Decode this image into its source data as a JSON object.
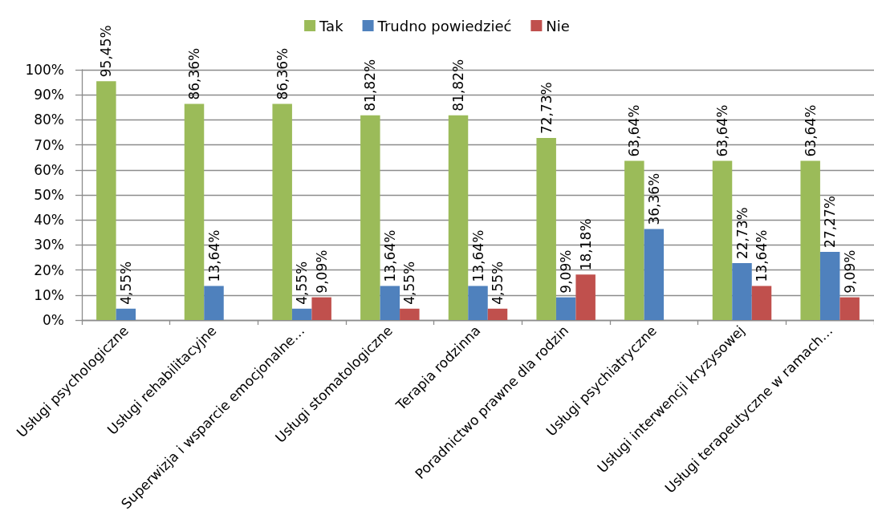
{
  "chart_data": {
    "type": "bar",
    "categories": [
      "Usługi psychologiczne",
      "Usługi rehabilitacyjne",
      "Superwizja i wsparcie emocjonalne…",
      "Usługi stomatologiczne",
      "Terapia rodzinna",
      "Poradnictwo prawne dla rodzin",
      "Usługi psychiatryczne",
      "Usługi interwencji kryzysowej",
      "Usługi terapeutyczne w ramach…"
    ],
    "series": [
      {
        "name": "Tak",
        "color": "#9bbb59",
        "values": [
          95.45,
          86.36,
          86.36,
          81.82,
          81.82,
          72.73,
          63.64,
          63.64,
          63.64
        ],
        "value_labels": [
          "95,45%",
          "86,36%",
          "86,36%",
          "81,82%",
          "81,82%",
          "72,73%",
          "63,64%",
          "63,64%",
          "63,64%"
        ]
      },
      {
        "name": "Trudno powiedzieć",
        "color": "#4f81bd",
        "values": [
          4.55,
          13.64,
          4.55,
          13.64,
          13.64,
          9.09,
          36.36,
          22.73,
          27.27
        ],
        "value_labels": [
          "4,55%",
          "13,64%",
          "4,55%",
          "13,64%",
          "13,64%",
          "9,09%",
          "36,36%",
          "22,73%",
          "27,27%"
        ]
      },
      {
        "name": "Nie",
        "color": "#c0504d",
        "values": [
          null,
          null,
          9.09,
          4.55,
          4.55,
          18.18,
          null,
          13.64,
          9.09
        ],
        "value_labels": [
          null,
          null,
          "9,09%",
          "4,55%",
          "4,55%",
          "18,18%",
          null,
          "13,64%",
          "9,09%"
        ]
      }
    ],
    "ylim": [
      0,
      100
    ],
    "yticks": [
      {
        "value": 0,
        "label": "0%"
      },
      {
        "value": 10,
        "label": "10%"
      },
      {
        "value": 20,
        "label": "20%"
      },
      {
        "value": 30,
        "label": "30%"
      },
      {
        "value": 40,
        "label": "40%"
      },
      {
        "value": 50,
        "label": "50%"
      },
      {
        "value": 60,
        "label": "60%"
      },
      {
        "value": 70,
        "label": "70%"
      },
      {
        "value": 80,
        "label": "80%"
      },
      {
        "value": 90,
        "label": "90%"
      },
      {
        "value": 100,
        "label": "100%"
      }
    ],
    "grid": "y",
    "legend": "top"
  }
}
